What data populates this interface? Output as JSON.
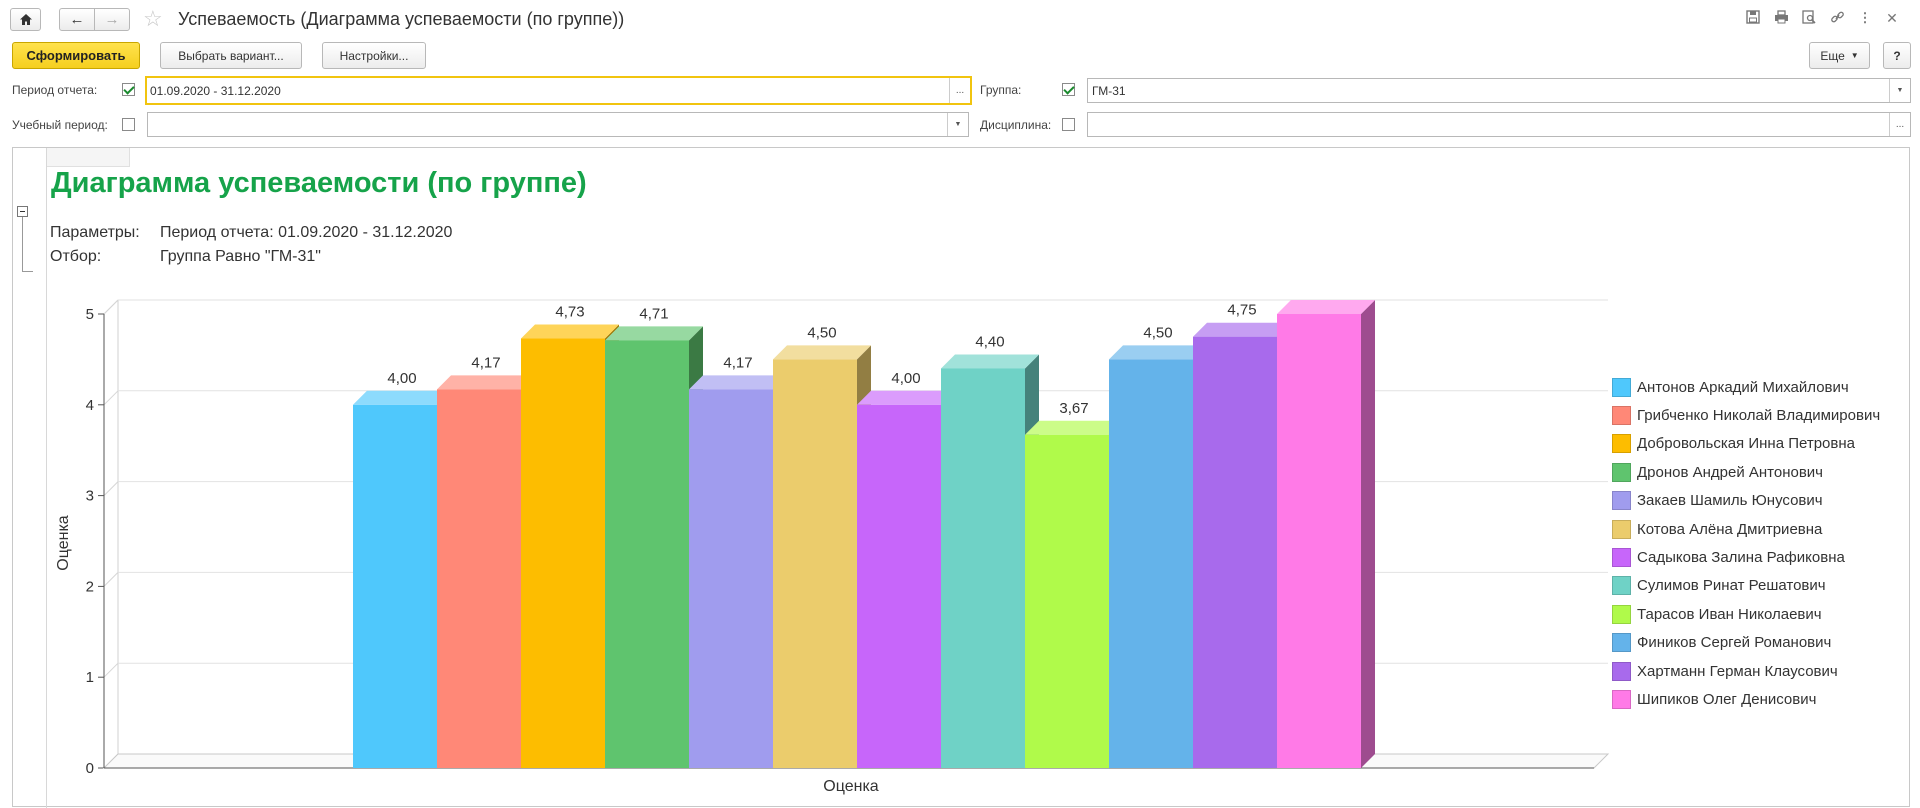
{
  "window": {
    "title": "Успеваемость (Диаграмма успеваемости (по группе))"
  },
  "toolbar": {
    "generate_label": "Сформировать",
    "choose_variant_label": "Выбрать вариант...",
    "settings_label": "Настройки...",
    "more_label": "Еще",
    "help_label": "?"
  },
  "filters": {
    "period_label": "Период отчета:",
    "period_checked": true,
    "period_value": "01.09.2020 - 31.12.2020",
    "period_button": "...",
    "group_label": "Группа:",
    "group_checked": true,
    "group_value": "ГМ-31",
    "study_period_label": "Учебный период:",
    "study_period_checked": false,
    "study_period_value": "",
    "discipline_label": "Дисциплина:",
    "discipline_checked": false,
    "discipline_value": "",
    "discipline_button": "..."
  },
  "report": {
    "title": "Диаграмма успеваемости (по группе)",
    "params_label": "Параметры:",
    "params_value": "Период отчета: 01.09.2020 - 31.12.2020",
    "filter_label": "Отбор:",
    "filter_value": "Группа Равно \"ГМ-31\"",
    "collapse_icon": "minus-box-icon"
  },
  "chart_data": {
    "type": "bar",
    "title": "",
    "xlabel": "Оценка",
    "ylabel": "Оценка",
    "ylim": [
      0,
      5
    ],
    "yticks": [
      "0",
      "1",
      "2",
      "3",
      "4",
      "5"
    ],
    "legend_position": "right",
    "style": "3d",
    "series": [
      {
        "name": "Антонов Аркадий Михайлович",
        "value": 4.0,
        "label": "4,00",
        "color": "#4fc8fc"
      },
      {
        "name": "Грибченко Николай Владимирович",
        "value": 4.17,
        "label": "4,17",
        "color": "#ff8877"
      },
      {
        "name": "Добровольская Инна Петровна",
        "value": 4.73,
        "label": "4,73",
        "color": "#fdbd00"
      },
      {
        "name": "Дронов Андрей Антонович",
        "value": 4.71,
        "label": "4,71",
        "color": "#5fc46e"
      },
      {
        "name": "Закаев Шамиль Юнусович",
        "value": 4.17,
        "label": "4,17",
        "color": "#a09cee"
      },
      {
        "name": "Котова Алёна Дмитриевна",
        "value": 4.5,
        "label": "4,50",
        "color": "#ebcc6c"
      },
      {
        "name": "Садыкова Залина Рафиковна",
        "value": 4.0,
        "label": "4,00",
        "color": "#c766fa"
      },
      {
        "name": "Сулимов Ринат Решатович",
        "value": 4.4,
        "label": "4,40",
        "color": "#6fd2c6"
      },
      {
        "name": "Тарасов Иван Николаевич",
        "value": 3.67,
        "label": "3,67",
        "color": "#b0fa4a"
      },
      {
        "name": "Фиников Сергей Романович",
        "value": 4.5,
        "label": "4,50",
        "color": "#64b3ea"
      },
      {
        "name": "Хартманн Герман Клаусович",
        "value": 4.75,
        "label": "4,75",
        "color": "#a86aec"
      },
      {
        "name": "Шипиков Олег Денисович",
        "value": 5.0,
        "label": "",
        "color": "#ff7ae7"
      }
    ]
  }
}
